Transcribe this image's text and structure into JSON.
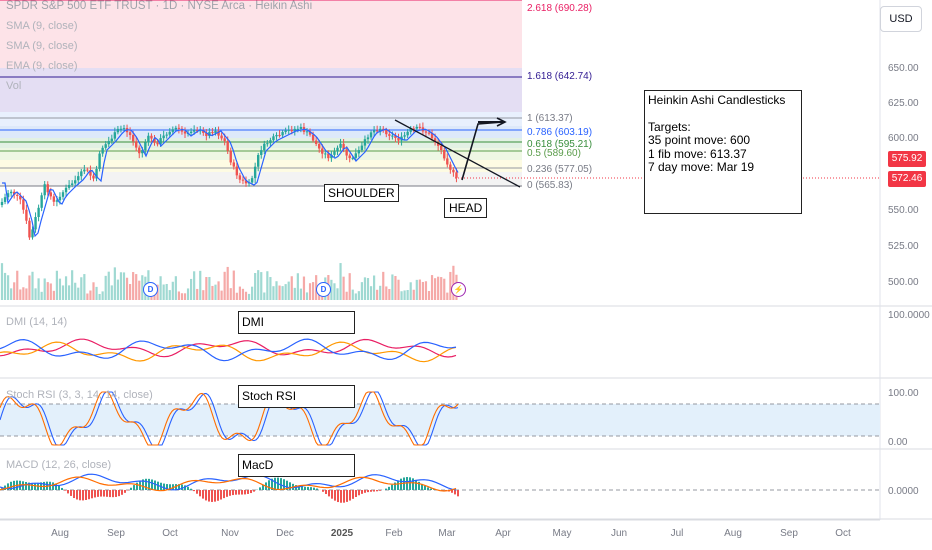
{
  "header": {
    "symbol_line": "SPDR S&P 500 ETF TRUST · 1D · NYSE Arca · Heikin Ashi",
    "indicators": [
      "SMA (9, close)",
      "SMA (9, close)",
      "EMA (9, close)",
      "Vol"
    ]
  },
  "currency_button": "USD",
  "price_axis": [
    "650.00",
    "625.00",
    "600.00",
    "550.00",
    "525.00",
    "500.00"
  ],
  "price_badges": [
    {
      "text": "575.92",
      "color": "#f23645"
    },
    {
      "text": "572.46",
      "color": "#f23645"
    }
  ],
  "fib_levels": [
    {
      "label": "2.618 (690.28)",
      "color": "#e91e63"
    },
    {
      "label": "1.618 (642.74)",
      "color": "#311b92"
    },
    {
      "label": "1 (613.37)",
      "color": "#787b86"
    },
    {
      "label": "0.786 (603.19)",
      "color": "#2962ff"
    },
    {
      "label": "0.618 (595.21)",
      "color": "#388e3c"
    },
    {
      "label": "0.5 (589.60)",
      "color": "#5b9c4b"
    },
    {
      "label": "0.236 (577.05)",
      "color": "#787b86"
    },
    {
      "label": "0 (565.83)",
      "color": "#787b86"
    }
  ],
  "annotations": {
    "shoulder": "SHOULDER",
    "head": "HEAD",
    "dmi_box": "DMI",
    "stoch_box": "Stoch RSI",
    "macd_box": "MacD",
    "notes": {
      "title": "Heinkin Ashi Candlesticks",
      "lines": [
        "Targets:",
        "35 point move: 600",
        "1 fib move: 613.37",
        "7 day move: Mar 19"
      ]
    }
  },
  "events": [
    {
      "glyph": "D",
      "kind": "dividend"
    },
    {
      "glyph": "D",
      "kind": "dividend"
    },
    {
      "glyph": "⚡",
      "kind": "split"
    }
  ],
  "panes": {
    "dmi": {
      "title": "DMI (14, 14)",
      "axis": "100.0000"
    },
    "stoch": {
      "title": "Stoch RSI (3, 3, 14, 14, close)",
      "axis_top": "100.00",
      "axis_bottom": "0.00"
    },
    "macd": {
      "title": "MACD (12, 26, close)",
      "axis": "0.0000"
    }
  },
  "time_axis": [
    "Aug",
    "Sep",
    "Oct",
    "Nov",
    "Dec",
    "2025",
    "Feb",
    "Mar",
    "Apr",
    "May",
    "Jun",
    "Jul",
    "Aug",
    "Sep",
    "Oct"
  ],
  "colors": {
    "up": "#26a69a",
    "down": "#ef5350",
    "sma": "#2962ff",
    "ema": "#f23645"
  }
}
